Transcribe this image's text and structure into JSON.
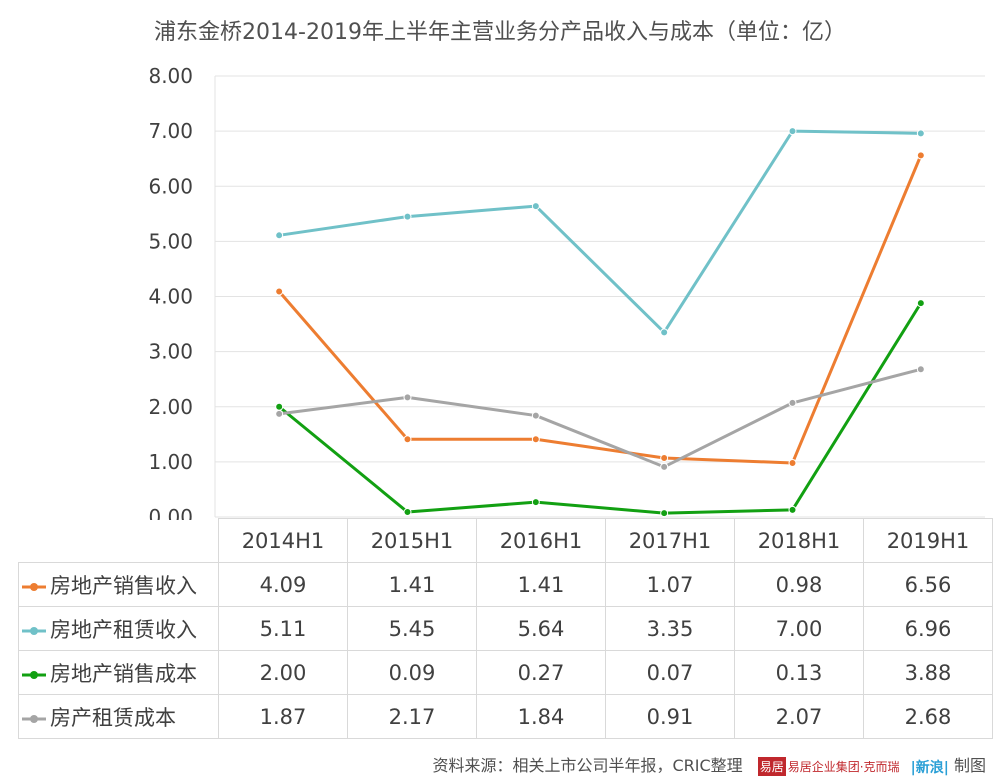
{
  "chart_data": {
    "type": "line",
    "title": "浦东金桥2014-2019年上半年主营业务分产品收入与成本（单位：亿）",
    "categories": [
      "2014H1",
      "2015H1",
      "2016H1",
      "2017H1",
      "2018H1",
      "2019H1"
    ],
    "y_ticks": [
      "0.00",
      "1.00",
      "2.00",
      "3.00",
      "4.00",
      "5.00",
      "6.00",
      "7.00",
      "8.00"
    ],
    "ylim": [
      0,
      8
    ],
    "grid": true,
    "legend": "data-table",
    "series": [
      {
        "name": "房地产销售收入",
        "color": "#ed7d31",
        "values": [
          4.09,
          1.41,
          1.41,
          1.07,
          0.98,
          6.56
        ],
        "labels": [
          "4.09",
          "1.41",
          "1.41",
          "1.07",
          "0.98",
          "6.56"
        ]
      },
      {
        "name": "房地产租赁收入",
        "color": "#70c1c8",
        "values": [
          5.11,
          5.45,
          5.64,
          3.35,
          7.0,
          6.96
        ],
        "labels": [
          "5.11",
          "5.45",
          "5.64",
          "3.35",
          "7.00",
          "6.96"
        ]
      },
      {
        "name": "房地产销售成本",
        "color": "#12a012",
        "values": [
          2.0,
          0.09,
          0.27,
          0.07,
          0.13,
          3.88
        ],
        "labels": [
          "2.00",
          "0.09",
          "0.27",
          "0.07",
          "0.13",
          "3.88"
        ]
      },
      {
        "name": "房产租赁成本",
        "color": "#a5a5a5",
        "values": [
          1.87,
          2.17,
          1.84,
          0.91,
          2.07,
          2.68
        ],
        "labels": [
          "1.87",
          "2.17",
          "1.84",
          "0.91",
          "2.07",
          "2.68"
        ]
      }
    ]
  },
  "footer": {
    "source": "资料来源：相关上市公司半年报，CRIC整理",
    "logo1_seal": "易居",
    "logo1_text": "易居企业集团·克而瑞",
    "logo2_text": "|新浪|",
    "suffix": "制图"
  }
}
